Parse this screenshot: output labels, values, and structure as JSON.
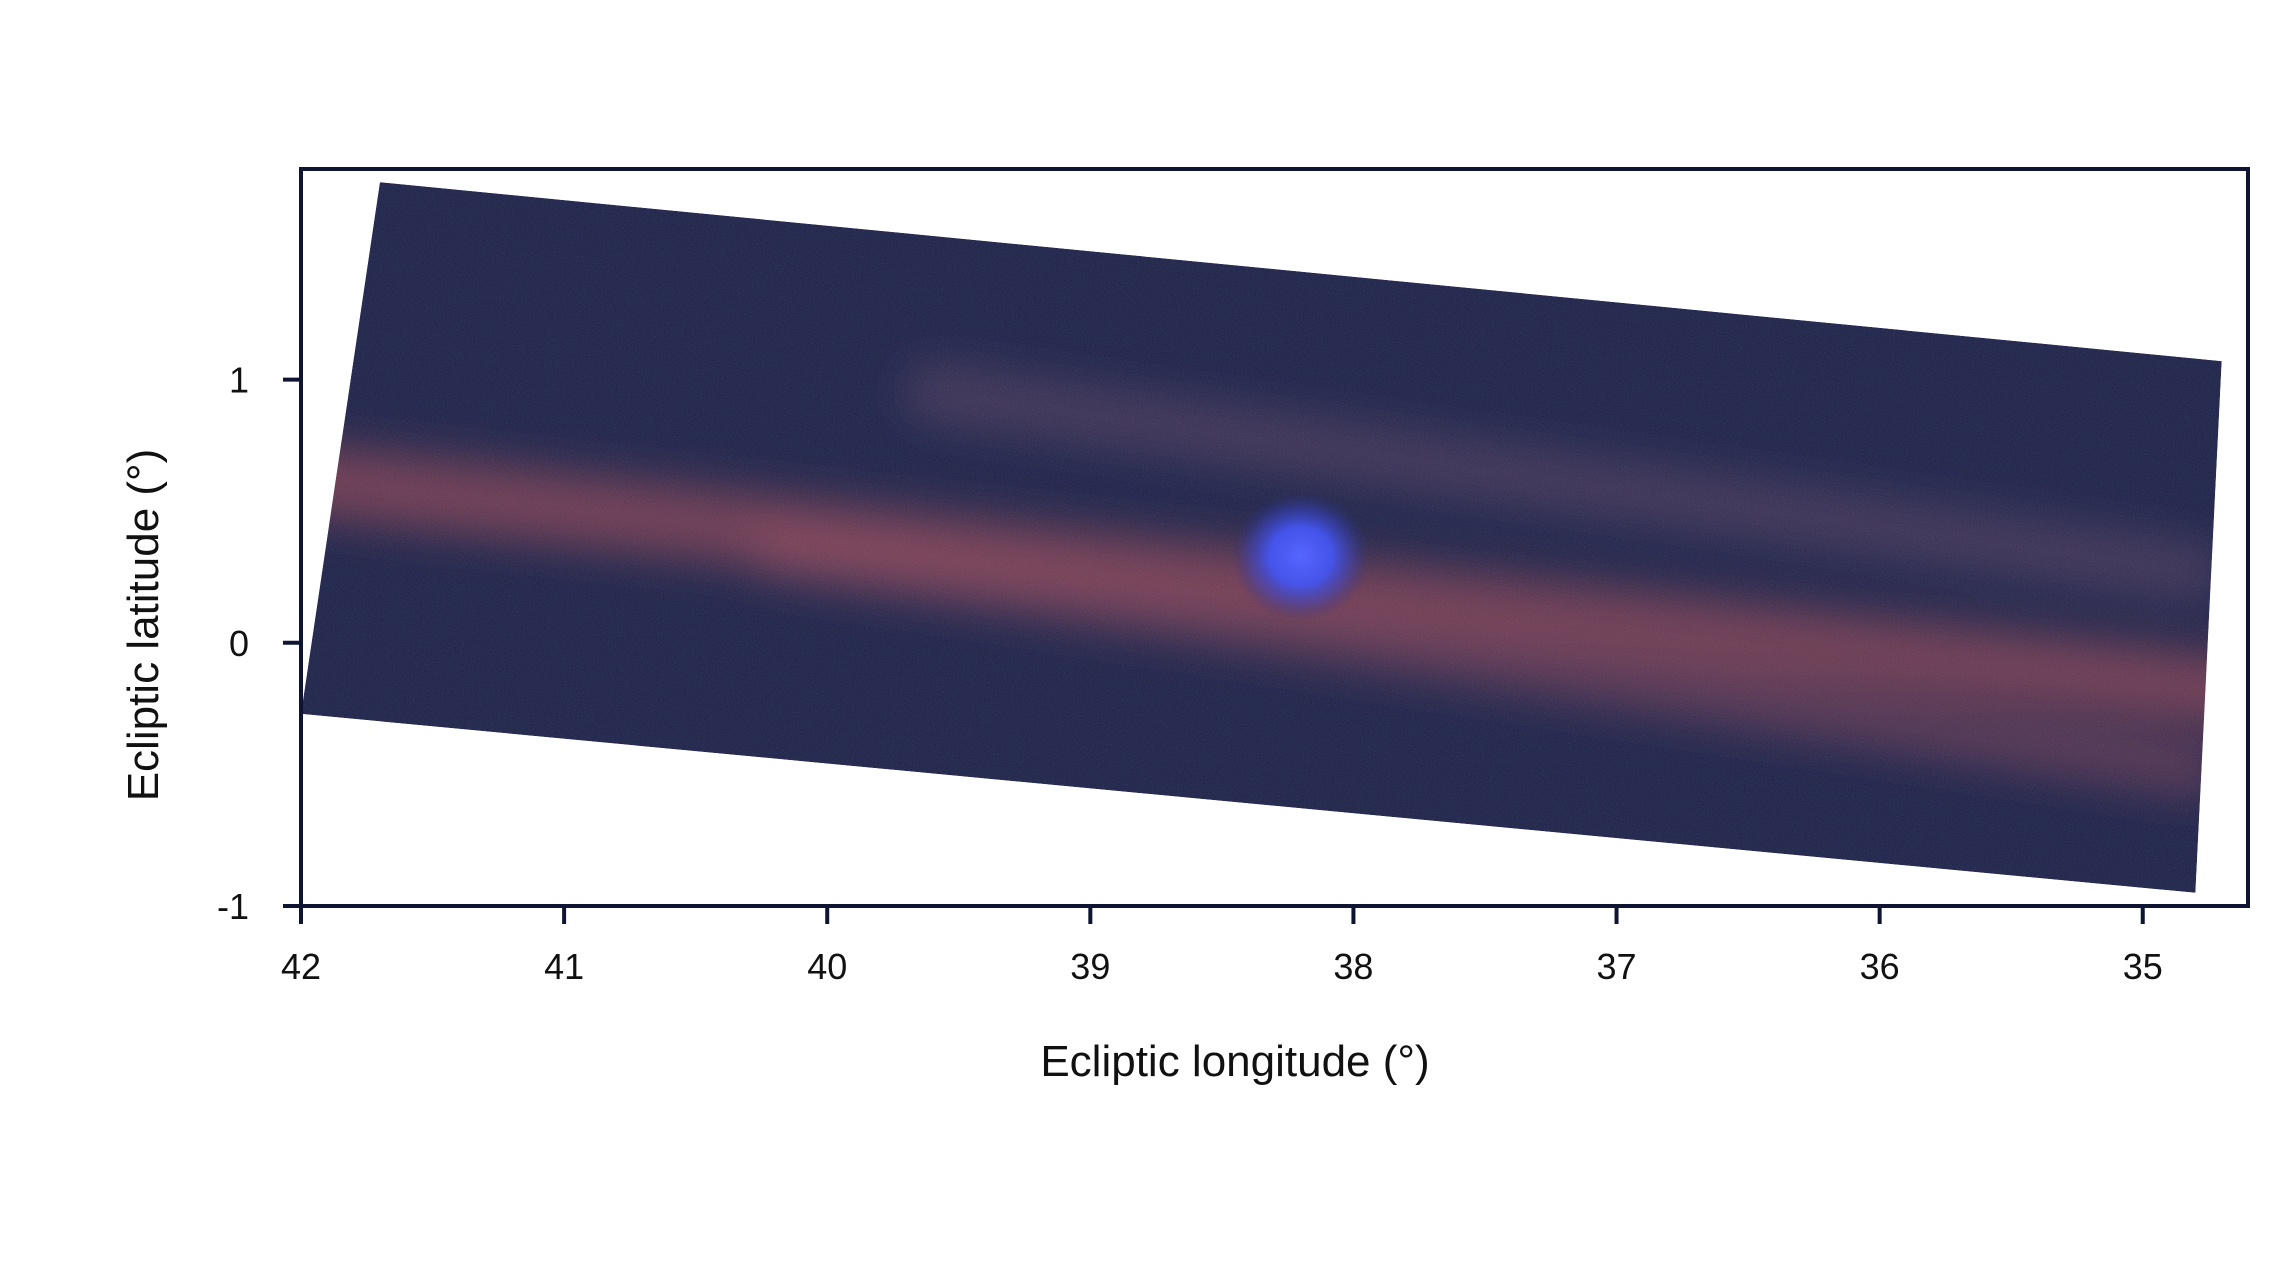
{
  "chart_data": {
    "type": "heatmap",
    "title": "",
    "xlabel": "Ecliptic longitude (°)",
    "ylabel": "Ecliptic latitude (°)",
    "xlim": [
      42,
      34.6
    ],
    "ylim": [
      -1,
      1.8
    ],
    "x_ticks": [
      42,
      41,
      40,
      39,
      38,
      37,
      36,
      35
    ],
    "x_tick_labels": [
      "42",
      "41",
      "40",
      "39",
      "38",
      "37",
      "36",
      "35"
    ],
    "y_ticks": [
      -1,
      0,
      1
    ],
    "y_tick_labels": [
      "-1",
      "0",
      "1"
    ],
    "grid": false,
    "legend": "none",
    "footprint_corners": [
      [
        41.7,
        1.75
      ],
      [
        34.7,
        1.07
      ],
      [
        34.8,
        -0.95
      ],
      [
        42.0,
        -0.27
      ]
    ],
    "bright_source": {
      "lon": 38.2,
      "lat": 0.33,
      "color": "#4b5cff"
    },
    "dust_bands": [
      {
        "lon": [
          42.0,
          34.7
        ],
        "lat": [
          0.62,
          -0.18
        ],
        "color": "#b4505a"
      },
      {
        "lon": [
          40.2,
          34.8
        ],
        "lat": [
          0.35,
          -0.48
        ],
        "color": "#9a4a60"
      },
      {
        "lon": [
          39.6,
          34.8
        ],
        "lat": [
          0.95,
          0.27
        ],
        "color": "#6a4d6a"
      }
    ],
    "colors": {
      "background": "#1b2048",
      "frame": "#101433",
      "source": "#4b5cff",
      "band": "#b4505a"
    }
  }
}
